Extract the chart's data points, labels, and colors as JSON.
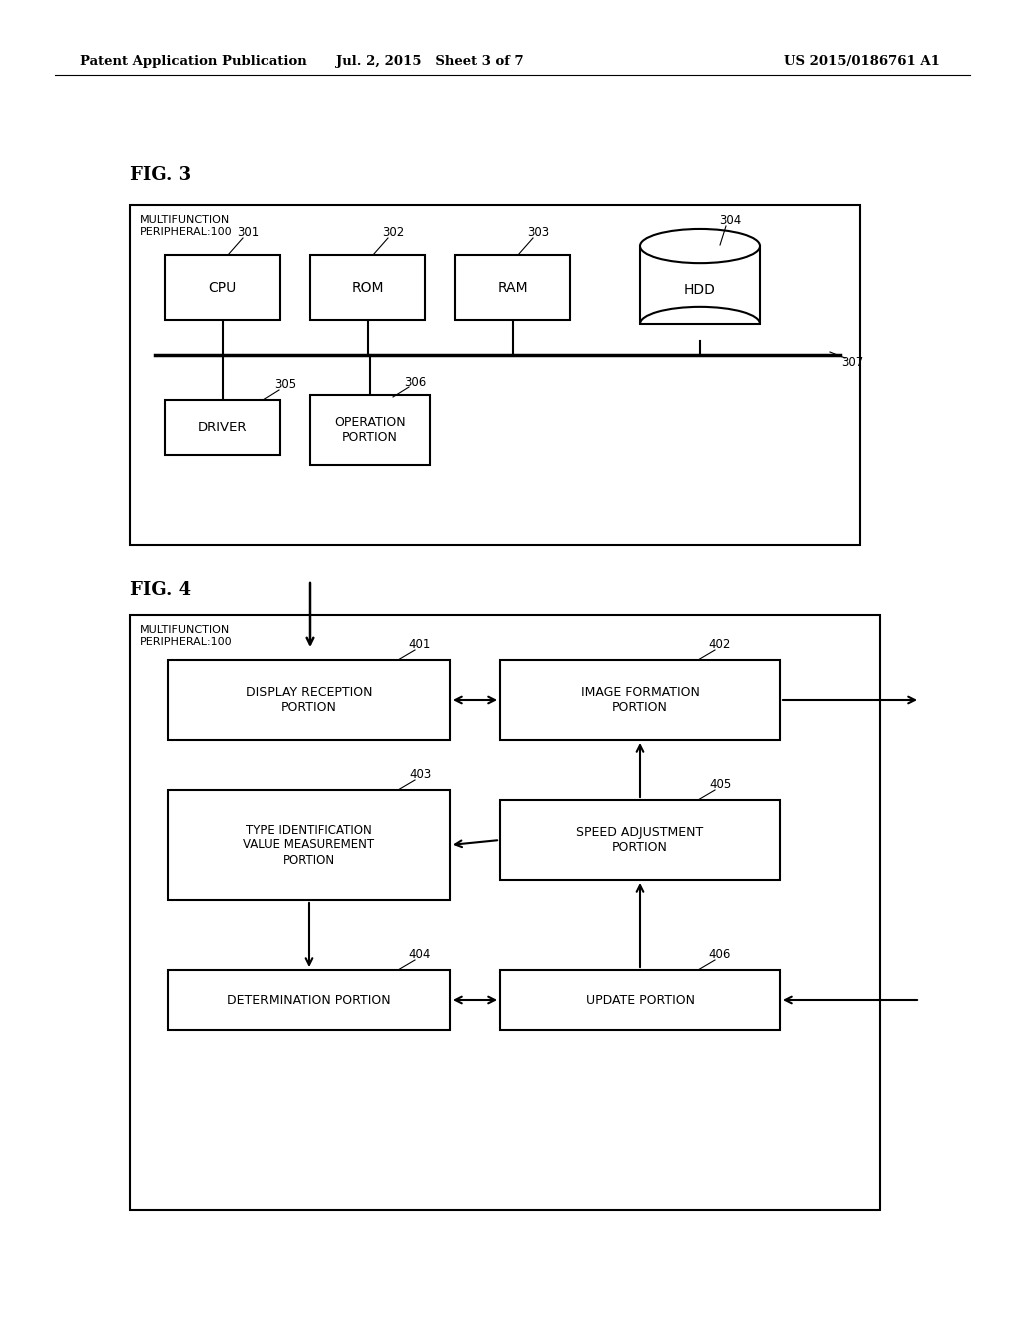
{
  "bg_color": "#ffffff",
  "header_left": "Patent Application Publication",
  "header_mid": "Jul. 2, 2015   Sheet 3 of 7",
  "header_right": "US 2015/0186761 A1",
  "fig3_label": "FIG. 3",
  "fig4_label": "FIG. 4",
  "fig3_outer_label": "MULTIFUNCTION\nPERIPHERAL:100",
  "fig4_outer_label": "MULTIFUNCTION\nPERIPHERAL:100"
}
